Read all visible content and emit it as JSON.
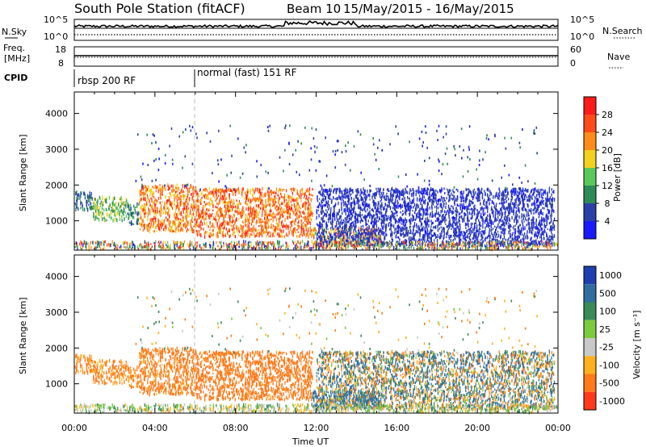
{
  "header": {
    "station": "South Pole Station (fitACF)",
    "beam": "Beam 10",
    "date_range": "15/May/2015 - 16/May/2015"
  },
  "top_panels": {
    "nsky_label": "N.Sky",
    "nsky_left_ticks": [
      "10^5",
      "10^0"
    ],
    "nsky_right_ticks": [
      "10^5",
      "10^0"
    ],
    "nsearch_label": "N.Search",
    "freq_label": "Freq.",
    "freq_unit": "[MHz]",
    "freq_ticks": [
      "18",
      "8"
    ],
    "nave_ticks": [
      "60",
      "0"
    ],
    "nave_label": "Nave",
    "cpid_label": "CPID",
    "cpid_segments": [
      {
        "label": "rbsp 200 RF",
        "start_hour": 0
      },
      {
        "label": "normal (fast) 151 RF",
        "start_hour": 6
      }
    ]
  },
  "axes": {
    "ylabel": "Slant Range [km]",
    "yticks": [
      "1000",
      "2000",
      "3000",
      "4000"
    ],
    "xticks": [
      "00:00",
      "04:00",
      "08:00",
      "12:00",
      "16:00",
      "20:00",
      "00:00"
    ],
    "xlabel": "Time UT"
  },
  "power_scale": {
    "label": "Power [dB]",
    "ticks": [
      "4",
      "8",
      "12",
      "16",
      "20",
      "24",
      "28"
    ],
    "colors": [
      "#1a1aff",
      "#2a3fa8",
      "#2e8b57",
      "#5ac85a",
      "#f2d21e",
      "#ff8c1a",
      "#ff4a1a",
      "#ff1a1a"
    ]
  },
  "velocity_scale": {
    "label": "Velocity [m s⁻¹]",
    "ticks": [
      "1000",
      "500",
      "100",
      "25",
      "-25",
      "-100",
      "-500",
      "-1000"
    ],
    "colors": [
      "#1f3fae",
      "#2f6e9e",
      "#3a8a5a",
      "#7acc3c",
      "#c8c8c8",
      "#ffb01e",
      "#ff7a1a",
      "#ff3a1a",
      "#ff0000"
    ]
  },
  "chart_data": {
    "type": "heatmap",
    "title": "South Pole Station (fitACF)",
    "xlabel": "Time UT",
    "ylabel": "Slant Range [km]",
    "x_range_hours": [
      0,
      24
    ],
    "ylim_km": [
      180,
      4600
    ],
    "series": [
      {
        "name": "Power [dB]",
        "scale": [
          0,
          32
        ]
      },
      {
        "name": "Velocity [m s⁻¹]",
        "scale": [
          -1000,
          1000
        ]
      }
    ],
    "scatter_regions": [
      {
        "t0": 0.0,
        "t1": 0.9,
        "r0": 1300,
        "r1": 1800,
        "power": [
          4,
          12
        ],
        "velocity": [
          -200,
          -50
        ]
      },
      {
        "t0": 0.9,
        "t1": 2.6,
        "r0": 1000,
        "r1": 1650,
        "power": [
          8,
          20
        ],
        "velocity": [
          -200,
          -50
        ]
      },
      {
        "t0": 2.6,
        "t1": 3.2,
        "r0": 900,
        "r1": 1500,
        "power": [
          4,
          14
        ],
        "velocity": [
          -200,
          -50
        ]
      },
      {
        "t0": 3.2,
        "t1": 6.0,
        "r0": 700,
        "r1": 2000,
        "power": [
          16,
          30
        ],
        "velocity": [
          -400,
          -60
        ]
      },
      {
        "t0": 6.0,
        "t1": 11.8,
        "r0": 550,
        "r1": 1900,
        "power": [
          18,
          30
        ],
        "velocity": [
          -500,
          -80
        ]
      },
      {
        "t0": 11.8,
        "t1": 15.2,
        "r0": 300,
        "r1": 800,
        "power": [
          14,
          26
        ],
        "velocity": [
          50,
          400
        ]
      },
      {
        "t0": 12.0,
        "t1": 23.8,
        "r0": 300,
        "r1": 1900,
        "power": [
          2,
          8
        ],
        "velocity": [
          -200,
          300
        ]
      },
      {
        "t0": 0.0,
        "t1": 24.0,
        "r0": 200,
        "r1": 420,
        "power": [
          2,
          30
        ],
        "velocity": [
          -50,
          50
        ]
      }
    ],
    "nsky_range": [
      1,
      100000
    ],
    "freq_range_mhz": [
      8,
      18
    ],
    "nave_range": [
      0,
      60
    ]
  }
}
